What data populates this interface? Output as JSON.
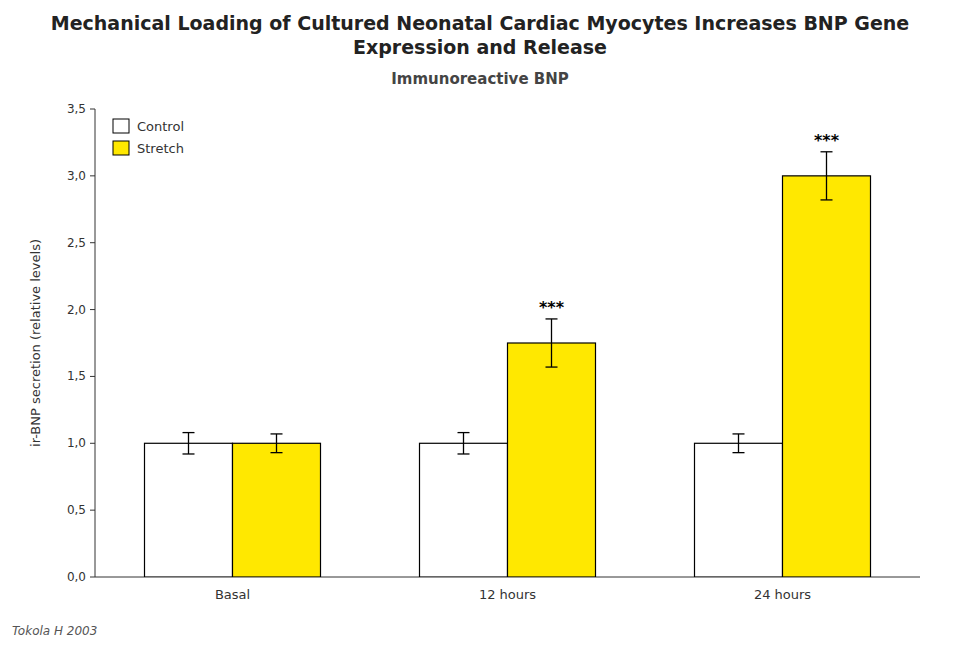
{
  "chart_data": {
    "type": "bar",
    "title": "Mechanical Loading of Cultured Neonatal Cardiac Myocytes Increases BNP Gene Expression and Release",
    "subtitle": "Immunoreactive BNP",
    "y_label": "ir-BNP secretion (relative levels)",
    "categories": [
      "Basal",
      "12 hours",
      "24 hours"
    ],
    "series": [
      {
        "name": "Control",
        "color": "#FFFFFF",
        "values": [
          1.0,
          1.0,
          1.0
        ],
        "errors": [
          0.08,
          0.08,
          0.07
        ]
      },
      {
        "name": "Stretch",
        "color": "#FFE800",
        "values": [
          1.0,
          1.75,
          3.0
        ],
        "errors": [
          0.07,
          0.18,
          0.18
        ]
      }
    ],
    "ylim": [
      0,
      3.5
    ],
    "yticks": [
      {
        "value": 0.0,
        "label": "0,0"
      },
      {
        "value": 0.5,
        "label": "0,5"
      },
      {
        "value": 1.0,
        "label": "1,0"
      },
      {
        "value": 1.5,
        "label": "1,5"
      },
      {
        "value": 2.0,
        "label": "2,0"
      },
      {
        "value": 2.5,
        "label": "2,5"
      },
      {
        "value": 3.0,
        "label": "3,0"
      },
      {
        "value": 3.5,
        "label": "3,5"
      }
    ],
    "grid": false,
    "legend": "upper left",
    "annotations": [
      {
        "text": "***",
        "category": "12 hours",
        "series": "Stretch"
      },
      {
        "text": "***",
        "category": "24 hours",
        "series": "Stretch"
      },
      {
        "text": "Tokola H 2003"
      }
    ]
  }
}
